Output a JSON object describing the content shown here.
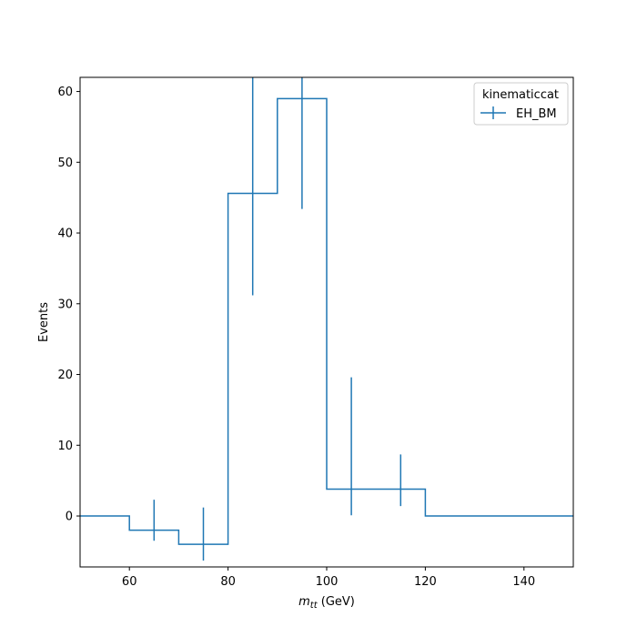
{
  "chart_data": {
    "type": "histogram-step",
    "xlabel_symbol": "m",
    "xlabel_subscript": "tt",
    "xlabel_unit": " (GeV)",
    "ylabel": "Events",
    "xlim": [
      50,
      150
    ],
    "ylim": [
      -7.2,
      62
    ],
    "xticks": [
      60,
      80,
      100,
      120,
      140
    ],
    "yticks": [
      0,
      10,
      20,
      30,
      40,
      50,
      60
    ],
    "grid": false,
    "legend": {
      "title": "kinematiccat",
      "position": "top-right"
    },
    "series": [
      {
        "name": "EH_BM",
        "color": "#1f77b4",
        "bin_edges": [
          50,
          60,
          70,
          80,
          90,
          100,
          110,
          120,
          130,
          140,
          150
        ],
        "values": [
          0,
          -2,
          -4,
          45.6,
          59.0,
          3.8,
          3.8,
          0,
          0,
          0
        ],
        "errorbars": [
          {
            "x": 65,
            "low": -3.5,
            "high": 2.3
          },
          {
            "x": 75,
            "low": -6.3,
            "high": 1.2
          },
          {
            "x": 85,
            "low": 31.2,
            "high": 62
          },
          {
            "x": 95,
            "low": 43.4,
            "high": 62
          },
          {
            "x": 105,
            "low": 0.1,
            "high": 19.6
          },
          {
            "x": 115,
            "low": 1.4,
            "high": 8.7
          }
        ]
      }
    ]
  }
}
